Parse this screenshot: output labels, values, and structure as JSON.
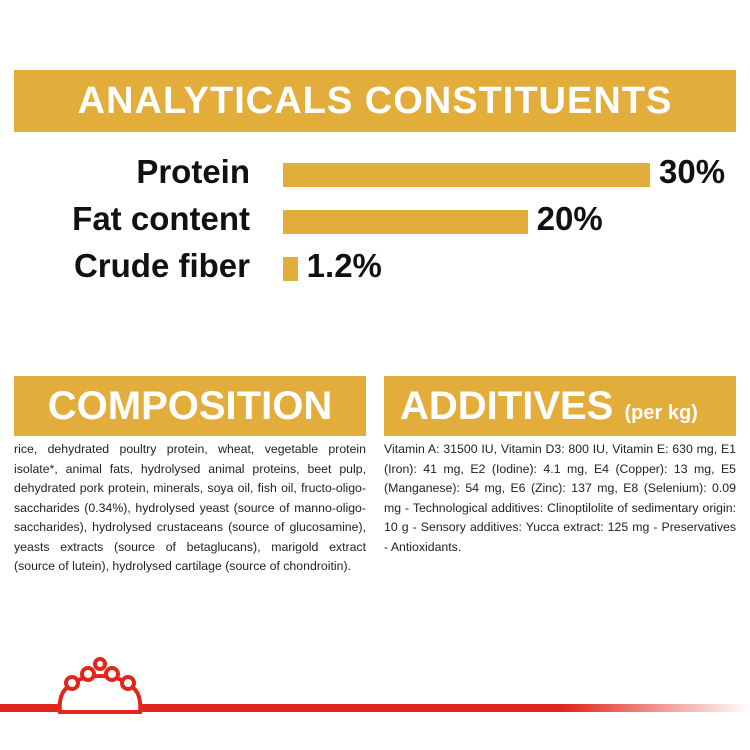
{
  "chart_data": {
    "type": "bar",
    "title": "ANALYTICALS CONSTITUENTS",
    "categories": [
      "Protein",
      "Fat content",
      "Crude fiber"
    ],
    "values": [
      30,
      20,
      1.2
    ],
    "value_labels": [
      "30%",
      "20%",
      "1.2%"
    ],
    "color": "#e2ad3b"
  },
  "composition": {
    "title": "COMPOSITION",
    "text": "rice, dehydrated poultry protein, wheat, vegetable protein isolate*, animal fats, hydrolysed animal proteins, beet pulp, dehydrated pork protein, minerals, soya oil, fish oil, fructo-oligo-saccharides (0.34%), hydrolysed yeast (source of manno-oligo-saccharides), hydrolysed crustaceans (source of glucosamine), yeasts extracts (source of betaglucans), marigold extract (source of lutein), hydrolysed cartilage (source of chondroitin)."
  },
  "additives": {
    "title": "ADDITIVES",
    "subtitle": "(per kg)",
    "text": "Vitamin A: 31500 IU, Vitamin D3: 800 IU, Vitamin E: 630 mg, E1 (Iron): 41 mg, E2 (Iodine): 4.1 mg, E4 (Copper): 13 mg, E5 (Manganese): 54 mg, E6 (Zinc): 137 mg, E8 (Selenium): 0.09 mg - Technological additives: Clinoptilolite of sedimentary origin: 10 g - Sensory additives: Yucca extract: 125 mg - Preservatives - Antioxidants."
  }
}
